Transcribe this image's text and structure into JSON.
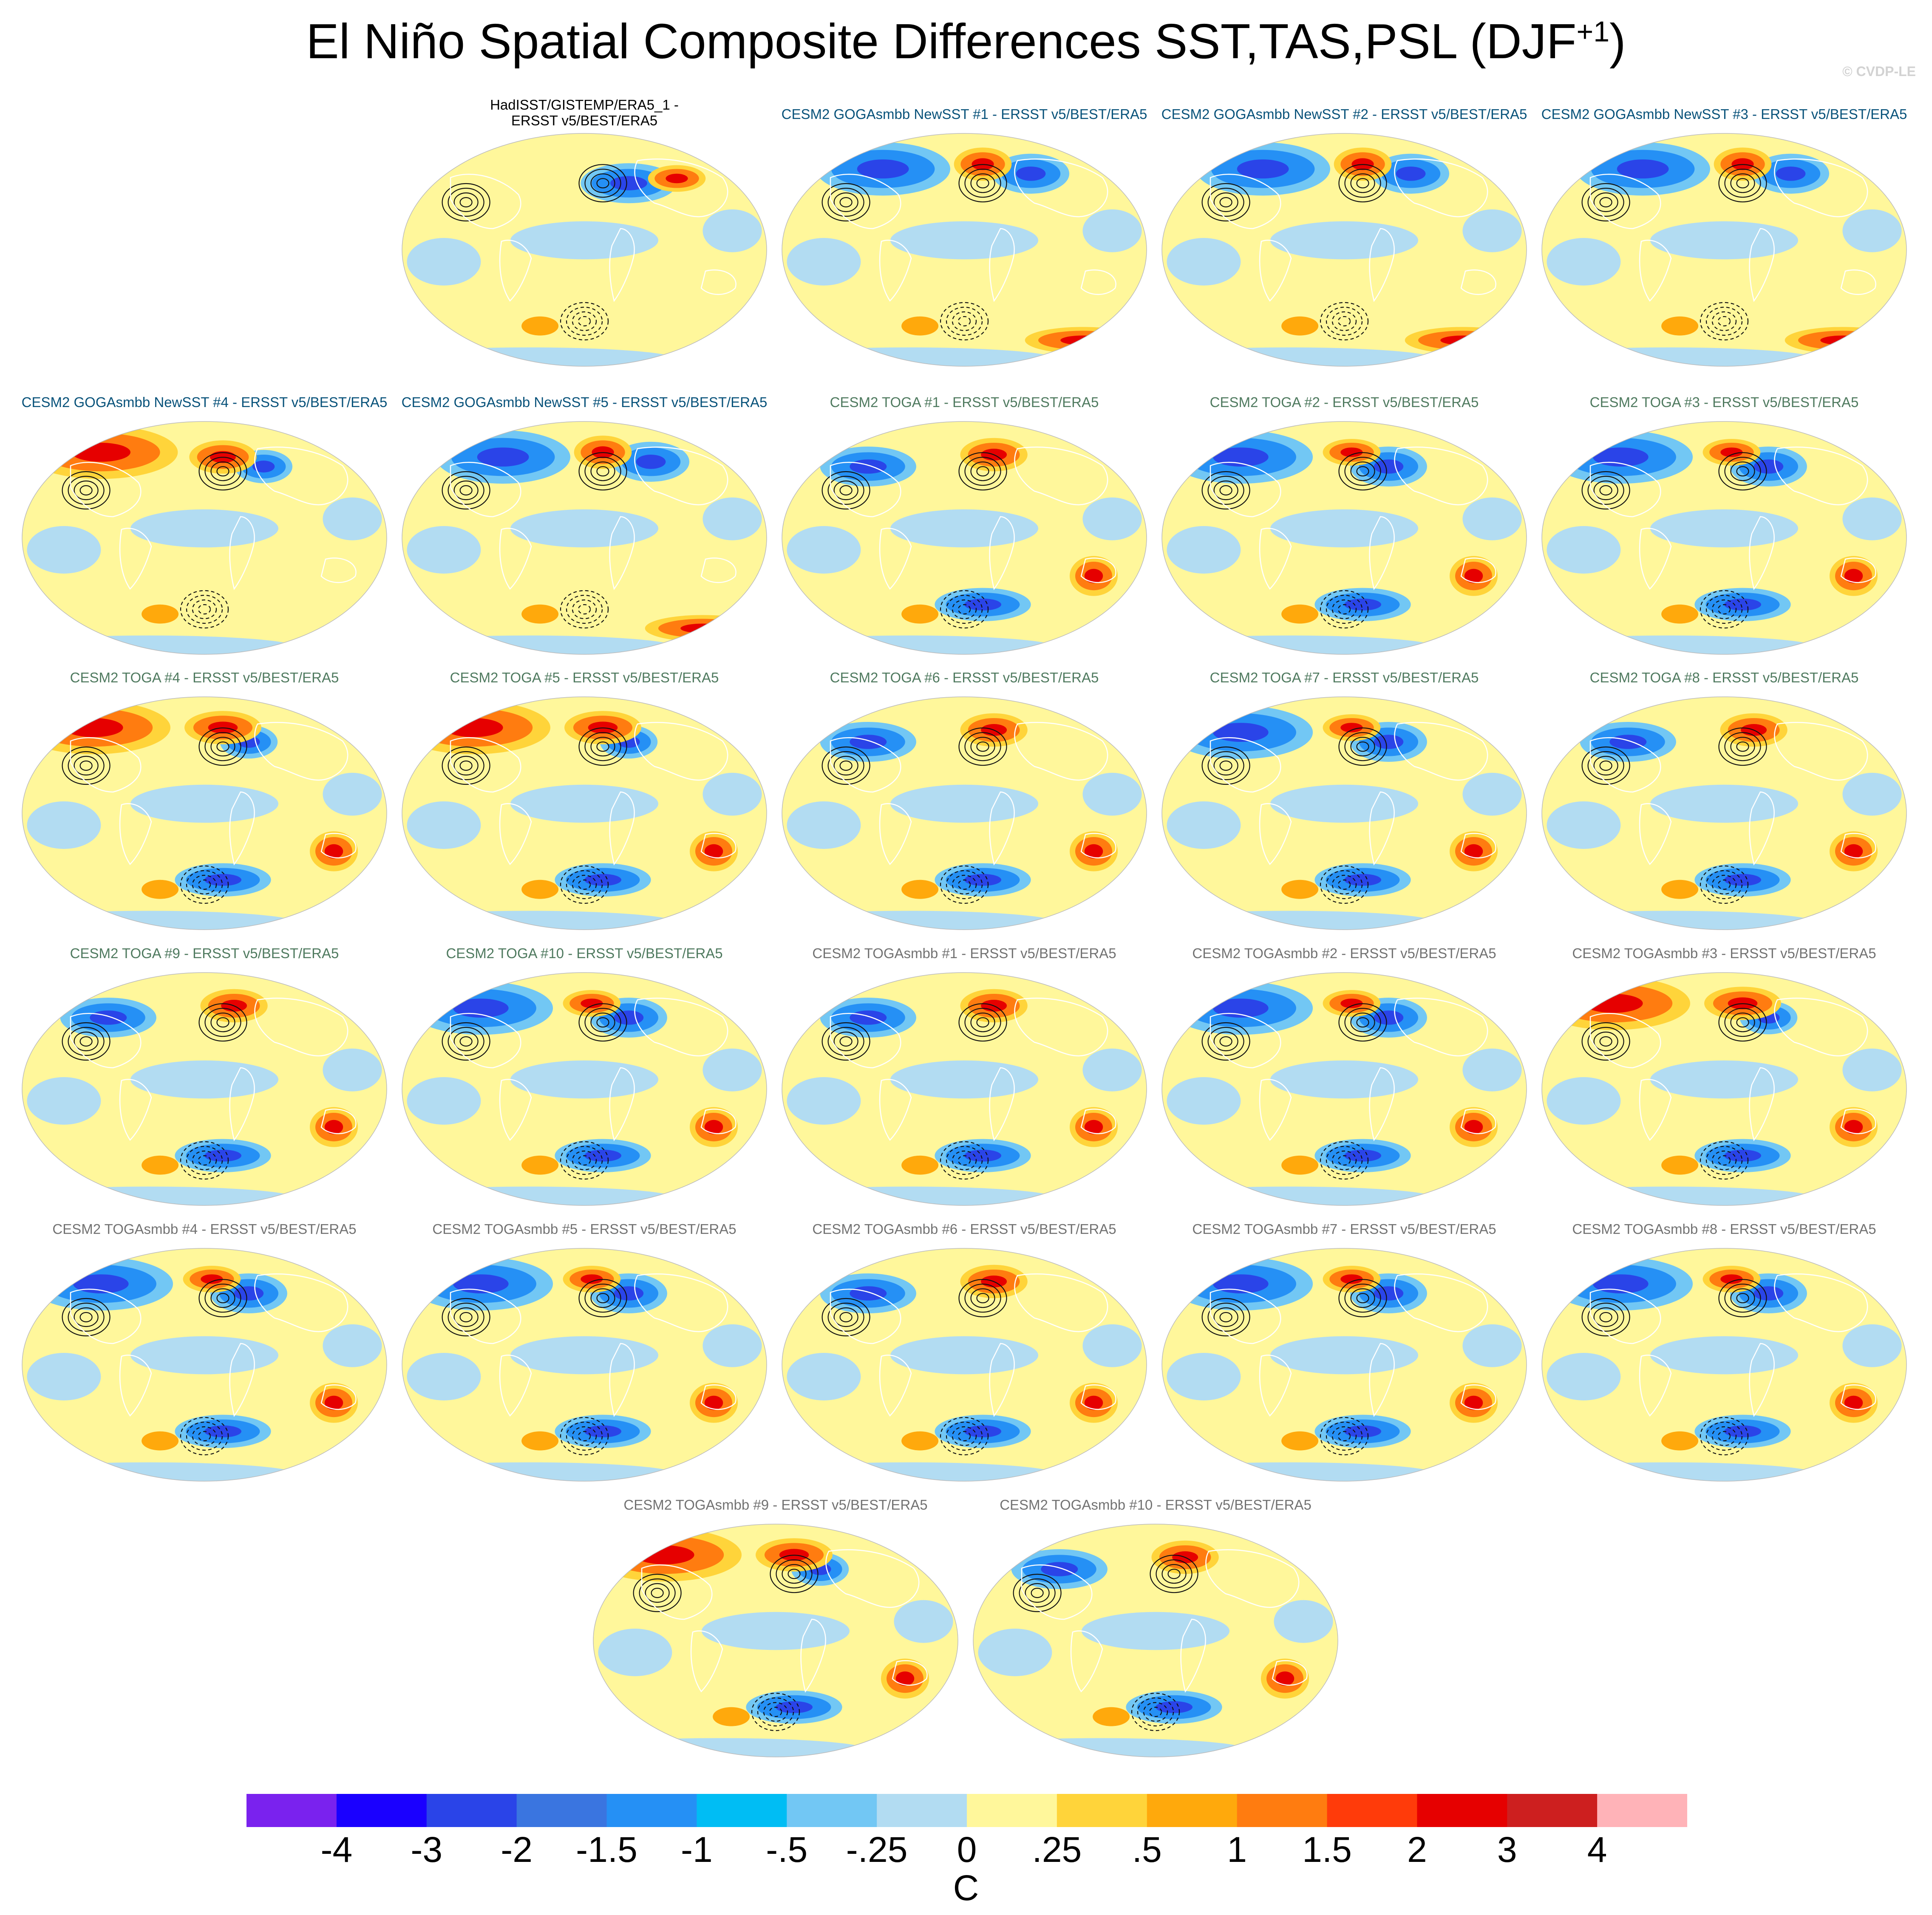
{
  "title": "El Niño Spatial Composite Differences SST,TAS,PSL (DJF",
  "title_sup": "+1",
  "title_close": ")",
  "copyright": "© CVDP-LE",
  "panels": [
    {
      "title_lines": [
        "HadISST/GISTEMP/ERA5_1 -",
        "ERSST v5/BEST/ERA5"
      ],
      "color": "#000000",
      "style": "obs"
    },
    {
      "title_lines": [
        "CESM2 GOGAsmbb NewSST #1 - ERSST v5/BEST/ERA5"
      ],
      "color": "#08527a",
      "style": "goga"
    },
    {
      "title_lines": [
        "CESM2 GOGAsmbb NewSST #2 - ERSST v5/BEST/ERA5"
      ],
      "color": "#08527a",
      "style": "goga"
    },
    {
      "title_lines": [
        "CESM2 GOGAsmbb NewSST #3 - ERSST v5/BEST/ERA5"
      ],
      "color": "#08527a",
      "style": "goga"
    },
    {
      "title_lines": [
        "CESM2 GOGAsmbb NewSST #4 - ERSST v5/BEST/ERA5"
      ],
      "color": "#08527a",
      "style": "goga-warm"
    },
    {
      "title_lines": [
        "CESM2 GOGAsmbb NewSST #5 - ERSST v5/BEST/ERA5"
      ],
      "color": "#08527a",
      "style": "goga"
    },
    {
      "title_lines": [
        "CESM2 TOGA #1 - ERSST v5/BEST/ERA5"
      ],
      "color": "#4f7a5f",
      "style": "toga"
    },
    {
      "title_lines": [
        "CESM2 TOGA #2 - ERSST v5/BEST/ERA5"
      ],
      "color": "#4f7a5f",
      "style": "toga-cold"
    },
    {
      "title_lines": [
        "CESM2 TOGA #3 - ERSST v5/BEST/ERA5"
      ],
      "color": "#4f7a5f",
      "style": "toga-cold"
    },
    {
      "title_lines": [
        "CESM2 TOGA #4 - ERSST v5/BEST/ERA5"
      ],
      "color": "#4f7a5f",
      "style": "toga-warm"
    },
    {
      "title_lines": [
        "CESM2 TOGA #5 - ERSST v5/BEST/ERA5"
      ],
      "color": "#4f7a5f",
      "style": "toga-warm"
    },
    {
      "title_lines": [
        "CESM2 TOGA #6 - ERSST v5/BEST/ERA5"
      ],
      "color": "#4f7a5f",
      "style": "toga"
    },
    {
      "title_lines": [
        "CESM2 TOGA #7 - ERSST v5/BEST/ERA5"
      ],
      "color": "#4f7a5f",
      "style": "toga-cold"
    },
    {
      "title_lines": [
        "CESM2 TOGA #8 - ERSST v5/BEST/ERA5"
      ],
      "color": "#4f7a5f",
      "style": "toga"
    },
    {
      "title_lines": [
        "CESM2 TOGA #9 - ERSST v5/BEST/ERA5"
      ],
      "color": "#4f7a5f",
      "style": "toga"
    },
    {
      "title_lines": [
        "CESM2 TOGA #10 - ERSST v5/BEST/ERA5"
      ],
      "color": "#4f7a5f",
      "style": "toga-cold"
    },
    {
      "title_lines": [
        "CESM2 TOGAsmbb #1 - ERSST v5/BEST/ERA5"
      ],
      "color": "#727272",
      "style": "toga"
    },
    {
      "title_lines": [
        "CESM2 TOGAsmbb #2 - ERSST v5/BEST/ERA5"
      ],
      "color": "#727272",
      "style": "toga-cold"
    },
    {
      "title_lines": [
        "CESM2 TOGAsmbb #3 - ERSST v5/BEST/ERA5"
      ],
      "color": "#727272",
      "style": "toga-warm"
    },
    {
      "title_lines": [
        "CESM2 TOGAsmbb #4 - ERSST v5/BEST/ERA5"
      ],
      "color": "#727272",
      "style": "toga-cold"
    },
    {
      "title_lines": [
        "CESM2 TOGAsmbb #5 - ERSST v5/BEST/ERA5"
      ],
      "color": "#727272",
      "style": "toga-cold"
    },
    {
      "title_lines": [
        "CESM2 TOGAsmbb #6 - ERSST v5/BEST/ERA5"
      ],
      "color": "#727272",
      "style": "toga"
    },
    {
      "title_lines": [
        "CESM2 TOGAsmbb #7 - ERSST v5/BEST/ERA5"
      ],
      "color": "#727272",
      "style": "toga-cold"
    },
    {
      "title_lines": [
        "CESM2 TOGAsmbb #8 - ERSST v5/BEST/ERA5"
      ],
      "color": "#727272",
      "style": "toga-cold"
    },
    {
      "title_lines": [
        "CESM2 TOGAsmbb #9 - ERSST v5/BEST/ERA5"
      ],
      "color": "#727272",
      "style": "toga-warm"
    },
    {
      "title_lines": [
        "CESM2 TOGAsmbb #10 - ERSST v5/BEST/ERA5"
      ],
      "color": "#727272",
      "style": "toga"
    }
  ],
  "colorbar": {
    "colors": [
      "#7a22ee",
      "#1a00ff",
      "#2a44e8",
      "#3a75e0",
      "#2590f5",
      "#00bdf4",
      "#72c7f4",
      "#b2dcf2",
      "#fff79b",
      "#ffd43a",
      "#ffa90c",
      "#ff7c10",
      "#ff3b0a",
      "#e60000",
      "#cd1f1f",
      "#ffb3b8"
    ],
    "tick_labels": [
      "-4",
      "-3",
      "-2",
      "-1.5",
      "-1",
      "-.5",
      "-.25",
      "0",
      ".25",
      ".5",
      "1",
      "1.5",
      "2",
      "3",
      "4"
    ],
    "unit": "C"
  }
}
